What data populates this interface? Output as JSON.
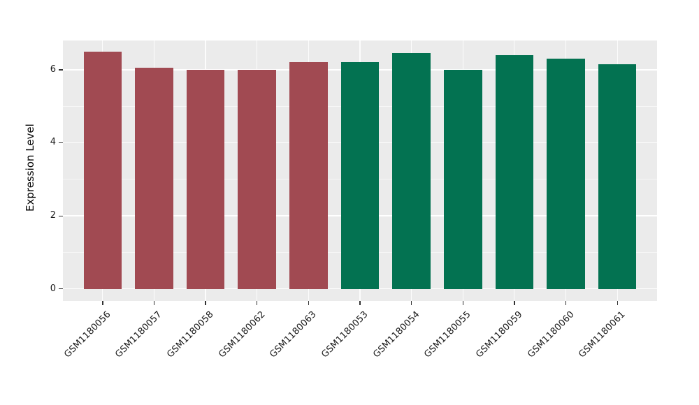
{
  "chart_data": {
    "type": "bar",
    "title": "",
    "xlabel": "",
    "ylabel": "Expression Level",
    "categories": [
      "GSM1180056",
      "GSM1180057",
      "GSM1180058",
      "GSM1180062",
      "GSM1180063",
      "GSM1180053",
      "GSM1180054",
      "GSM1180055",
      "GSM1180059",
      "GSM1180060",
      "GSM1180061"
    ],
    "values": [
      6.5,
      6.05,
      6.0,
      6.0,
      6.2,
      6.2,
      6.45,
      6.0,
      6.4,
      6.3,
      6.15
    ],
    "bar_groups": [
      "group1",
      "group1",
      "group1",
      "group1",
      "group1",
      "group2",
      "group2",
      "group2",
      "group2",
      "group2",
      "group2"
    ],
    "group_colors": {
      "group1": "#A14A52",
      "group2": "#037251"
    },
    "yticks": [
      0,
      2,
      4,
      6
    ],
    "yticks_minor": [
      1,
      3,
      5
    ],
    "ylim": [
      -0.33,
      6.8
    ],
    "legend_position": "none",
    "grid": "on",
    "panel_background": "#EBEBEB",
    "gridline_color": "#FFFFFF"
  }
}
